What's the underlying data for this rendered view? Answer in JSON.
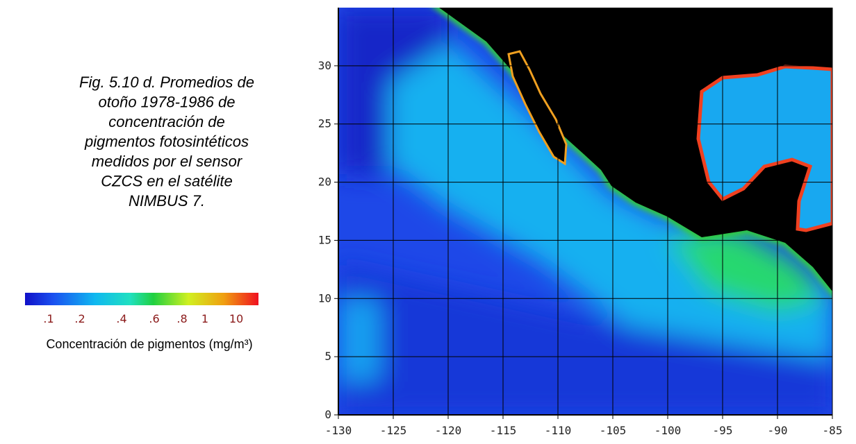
{
  "caption": {
    "lines": [
      "Fig. 5.10 d.  Promedios de",
      "otoño 1978-1986 de",
      "concentración de",
      "pigmentos fotosintéticos",
      "medidos por el sensor",
      "CZCS en el satélite",
      "NIMBUS 7."
    ]
  },
  "colorbar": {
    "labels": [
      ".1",
      ".2",
      ".4",
      ".6",
      ".8",
      "1",
      "10"
    ],
    "title": "Concentración de pigmentos (mg/m³)"
  },
  "map": {
    "xlim": [
      -130,
      -85
    ],
    "ylim": [
      0,
      35
    ],
    "xticks": [
      -130,
      -125,
      -120,
      -115,
      -110,
      -105,
      -100,
      -95,
      -90,
      -85
    ],
    "yticks": [
      0,
      5,
      10,
      15,
      20,
      25,
      30
    ]
  }
}
